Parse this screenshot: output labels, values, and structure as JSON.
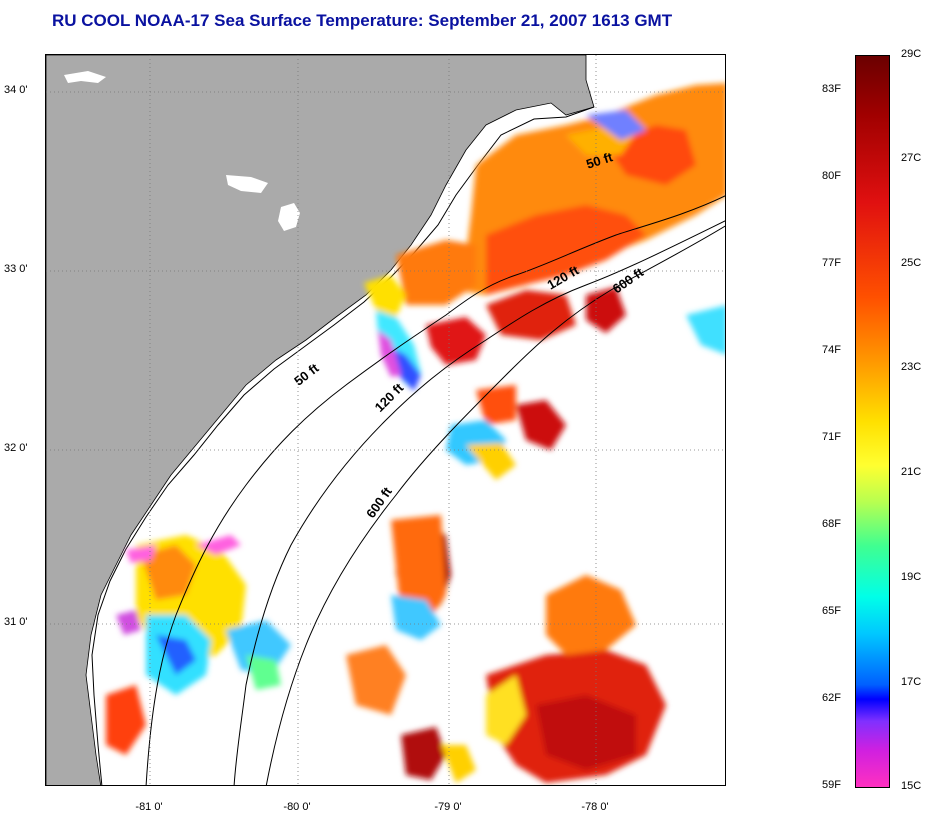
{
  "title": "RU COOL  NOAA-17  Sea Surface Temperature:  September 21, 2007 1613 GMT",
  "map": {
    "lat_labels": [
      "34 0'",
      "33 0'",
      "32 0'",
      "31 0'"
    ],
    "lon_labels": [
      "-81 0'",
      "-80 0'",
      "-79 0'",
      "-78 0'"
    ],
    "contour_labels": [
      "50 ft",
      "120 ft",
      "600 ft",
      "50 ft",
      "120 ft",
      "600 ft"
    ],
    "colors": {
      "land": "#aaaaaa",
      "ocean": "#ffffff",
      "title": "#0a12a0"
    }
  },
  "colorbar": {
    "fahrenheit": [
      "83F",
      "80F",
      "77F",
      "74F",
      "71F",
      "68F",
      "65F",
      "62F",
      "59F"
    ],
    "celsius": [
      "29C",
      "27C",
      "25C",
      "23C",
      "21C",
      "19C",
      "17C",
      "15C"
    ]
  }
}
